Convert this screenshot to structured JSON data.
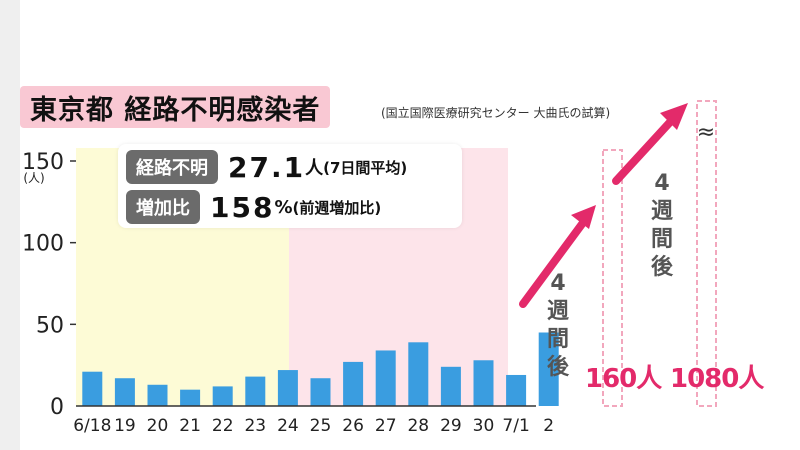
{
  "title": "東京都 経路不明感染者",
  "source": "(国立国際医療研究センター 大曲氏の試算)",
  "stats": [
    {
      "label": "経路不明",
      "value": "27.1",
      "unit": "人",
      "note": "(7日間平均)"
    },
    {
      "label": "増加比",
      "value": "158",
      "unit": "%",
      "note": "(前週増加比)"
    }
  ],
  "projection": {
    "after_label_chars": [
      "4",
      "週",
      "間",
      "後"
    ],
    "values": [
      "160人",
      "1080人"
    ]
  },
  "colors": {
    "bar": "#3a9de0",
    "arrow": "#e32a6a",
    "band1": "#fdfbd6",
    "band2": "#fde4ea",
    "dashed": "#f2a7bd"
  },
  "chart_data": {
    "type": "bar",
    "categories": [
      "6/18",
      "19",
      "20",
      "21",
      "22",
      "23",
      "24",
      "25",
      "26",
      "27",
      "28",
      "29",
      "30",
      "7/1",
      "2"
    ],
    "values": [
      21,
      17,
      13,
      10,
      12,
      18,
      22,
      17,
      27,
      34,
      39,
      24,
      28,
      19,
      45
    ],
    "ylim": [
      0,
      150
    ],
    "yticks": [
      "0",
      "50",
      "100",
      "150"
    ],
    "yunit": "(人)",
    "projected_values": [
      160,
      1080
    ]
  }
}
